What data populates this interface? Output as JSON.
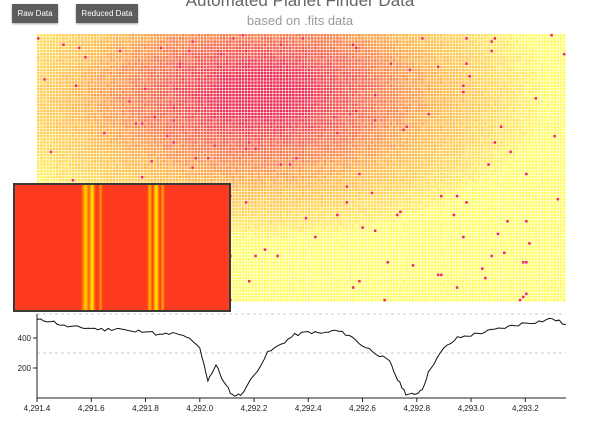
{
  "header": {
    "title": "Automated Planet Finder Data",
    "subtitle": "based on .fits data"
  },
  "buttons": {
    "raw_label": "Raw Data",
    "reduced_label": "Reduced Data"
  },
  "colors": {
    "heat_low": "#ffff66",
    "heat_mid": "#ffb347",
    "heat_high": "#ee2a52",
    "spectrum_red": "#ff3b1f",
    "spectrum_yellow": "#ffe600",
    "line": "#111111",
    "gridline": "#bbbbbb"
  },
  "chart_data": [
    {
      "type": "heatmap",
      "rows": 85,
      "cols": 168,
      "center_row": 0.22,
      "center_col": 0.42,
      "color_scale": [
        "#ffff66",
        "#ffb347",
        "#ee2a52"
      ]
    },
    {
      "type": "heatmap",
      "bands": [
        {
          "x": 0.33,
          "width": 0.025,
          "intensity": 0.85
        },
        {
          "x": 0.36,
          "width": 0.02,
          "intensity": 1.0
        },
        {
          "x": 0.4,
          "width": 0.012,
          "intensity": 0.5
        },
        {
          "x": 0.63,
          "width": 0.015,
          "intensity": 0.7
        },
        {
          "x": 0.66,
          "width": 0.02,
          "intensity": 1.0
        },
        {
          "x": 0.69,
          "width": 0.012,
          "intensity": 0.6
        }
      ]
    },
    {
      "type": "line",
      "x_min": 4291.4,
      "x_max": 4293.35,
      "x": [
        4291.4,
        4291.45,
        4291.5,
        4291.55,
        4291.6,
        4291.65,
        4291.7,
        4291.75,
        4291.8,
        4291.85,
        4291.9,
        4291.95,
        4292.0,
        4292.03,
        4292.06,
        4292.09,
        4292.12,
        4292.15,
        4292.2,
        4292.25,
        4292.3,
        4292.35,
        4292.4,
        4292.45,
        4292.5,
        4292.55,
        4292.6,
        4292.65,
        4292.7,
        4292.73,
        4292.76,
        4292.79,
        4292.82,
        4292.85,
        4292.9,
        4292.95,
        4293.0,
        4293.05,
        4293.1,
        4293.15,
        4293.2,
        4293.25,
        4293.3,
        4293.35
      ],
      "y": [
        520,
        515,
        480,
        470,
        465,
        455,
        465,
        440,
        450,
        420,
        430,
        410,
        330,
        120,
        220,
        100,
        20,
        20,
        150,
        300,
        360,
        420,
        440,
        430,
        450,
        420,
        350,
        300,
        240,
        120,
        30,
        20,
        60,
        200,
        330,
        400,
        420,
        440,
        460,
        480,
        500,
        510,
        530,
        490
      ],
      "y_ticks": [
        200,
        400
      ],
      "y_tick_labels": [
        "200",
        "400"
      ],
      "y_min": 0,
      "y_max": 560,
      "x_ticks": [
        4291.4,
        4291.6,
        4291.8,
        4292.0,
        4292.2,
        4292.4,
        4292.6,
        4292.8,
        4293.0,
        4293.2
      ],
      "x_tick_labels": [
        "4,291.4",
        "4,291.6",
        "4,291.8",
        "4,292.0",
        "4,292.2",
        "4,292.4",
        "4,292.6",
        "4,292.8",
        "4,293.0",
        "4,293.2"
      ],
      "dashed_levels": [
        560,
        300
      ]
    }
  ]
}
